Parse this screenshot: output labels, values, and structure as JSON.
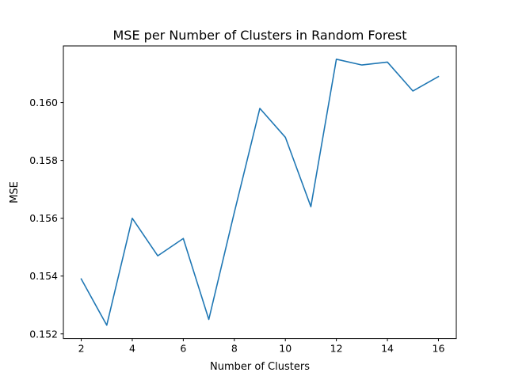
{
  "chart_data": {
    "type": "line",
    "title": "MSE per Number of Clusters in Random Forest",
    "xlabel": "Number of Clusters",
    "ylabel": "MSE",
    "x": [
      2,
      3,
      4,
      5,
      6,
      7,
      8,
      9,
      10,
      11,
      12,
      13,
      14,
      15,
      16
    ],
    "series": [
      {
        "values": [
          0.1539,
          0.1523,
          0.156,
          0.1547,
          0.1553,
          0.1525,
          0.1562,
          0.1598,
          0.1588,
          0.1564,
          0.1615,
          0.1613,
          0.1614,
          0.1604,
          0.1609
        ],
        "color": "#1f77b4"
      }
    ],
    "xlim": [
      1.3,
      16.7
    ],
    "ylim": [
      0.15184,
      0.16196
    ],
    "xticks": [
      2,
      4,
      6,
      8,
      10,
      12,
      14,
      16
    ],
    "yticks": [
      0.152,
      0.154,
      0.156,
      0.158,
      0.16
    ],
    "xtick_labels": [
      "2",
      "4",
      "6",
      "8",
      "10",
      "12",
      "14",
      "16"
    ],
    "ytick_labels": [
      "0.152",
      "0.154",
      "0.156",
      "0.158",
      "0.160"
    ],
    "grid": false,
    "legend": "none"
  }
}
